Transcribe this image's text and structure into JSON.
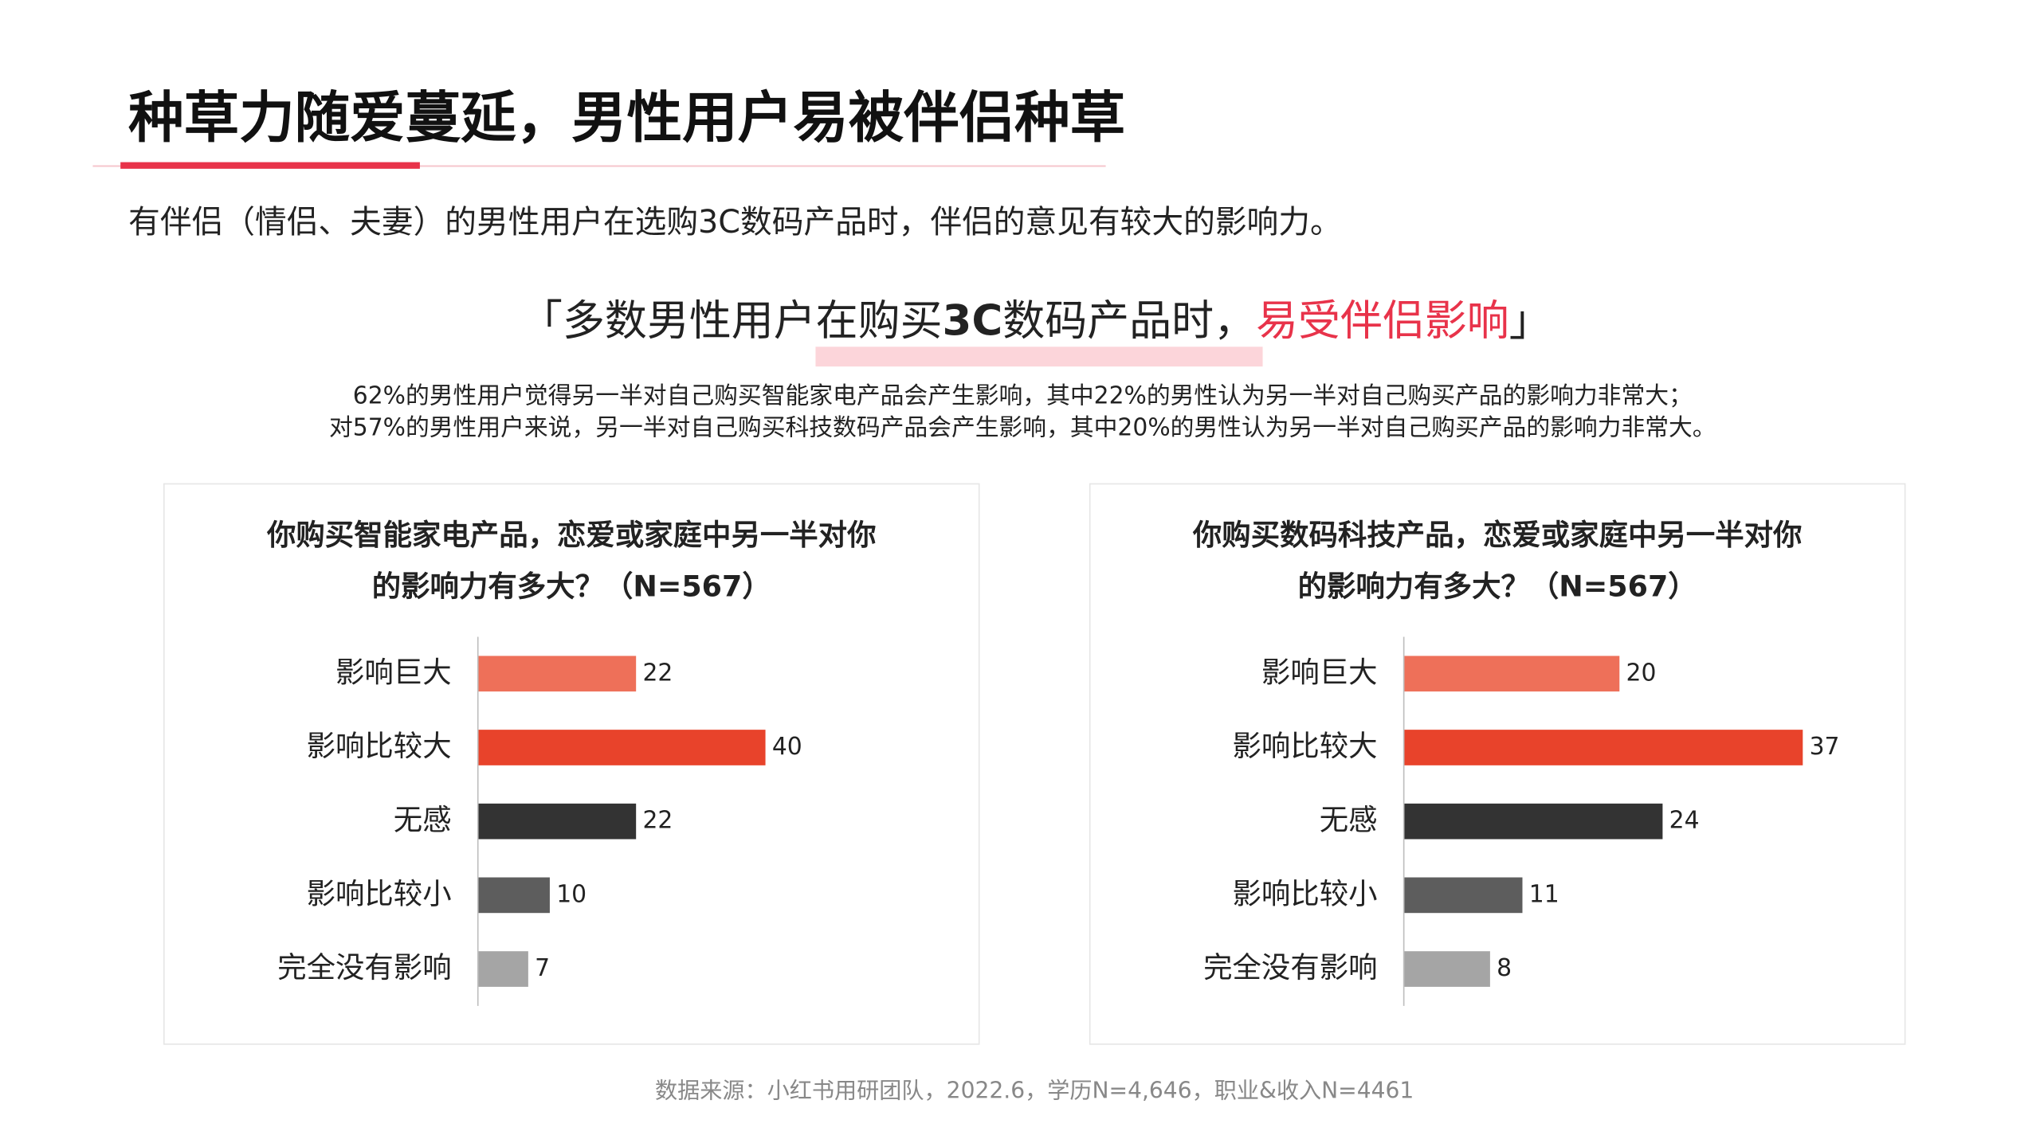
{
  "title": "种草力随爱蔓延，男性用户易被伴侣种草",
  "subtitle": "有伴侣（情侣、夫妻）的男性用户在选购3C数码产品时，伴侣的意见有较大的影响力。",
  "quote": [
    "「多数男性用户在购买",
    "3C",
    "数码产品时，",
    "易受伴侣影响",
    "」"
  ],
  "paragraph": [
    "62%的男性用户觉得另一半对自己购买智能家电产品会产生影响，其中22%的男性认为另一半对自己购买产品的影响力非常大；",
    "对57%的男性用户来说，另一半对自己购买科技数码产品会产生影响，其中20%的男性认为另一半对自己购买产品的影响力非常大。"
  ],
  "source": "数据来源：小红书用研团队，2022.6，学历N=4,646，职业&收入N=4461",
  "chart_data": [
    {
      "type": "hbar",
      "title": [
        "你购买智能家电产品，恋爱或家庭中另一半对你",
        "的影响力有多大？（N=567）"
      ],
      "categories": [
        "影响巨大",
        "影响比较大",
        "无感",
        "影响比较小",
        "完全没有影响"
      ],
      "values": [
        22,
        40,
        22,
        10,
        7
      ],
      "colors": [
        "#ee7059",
        "#e8432b",
        "#333333",
        "#5d5d5d",
        "#a5a5a5"
      ],
      "xlim": [
        0,
        60
      ]
    },
    {
      "type": "hbar",
      "title": [
        "你购买数码科技产品，恋爱或家庭中另一半对你",
        "的影响力有多大？（N=567）"
      ],
      "categories": [
        "影响巨大",
        "影响比较大",
        "无感",
        "影响比较小",
        "完全没有影响"
      ],
      "values": [
        20,
        37,
        24,
        11,
        8
      ],
      "colors": [
        "#ee7059",
        "#e8432b",
        "#333333",
        "#5d5d5d",
        "#a5a5a5"
      ],
      "xlim": [
        0,
        40
      ]
    }
  ]
}
